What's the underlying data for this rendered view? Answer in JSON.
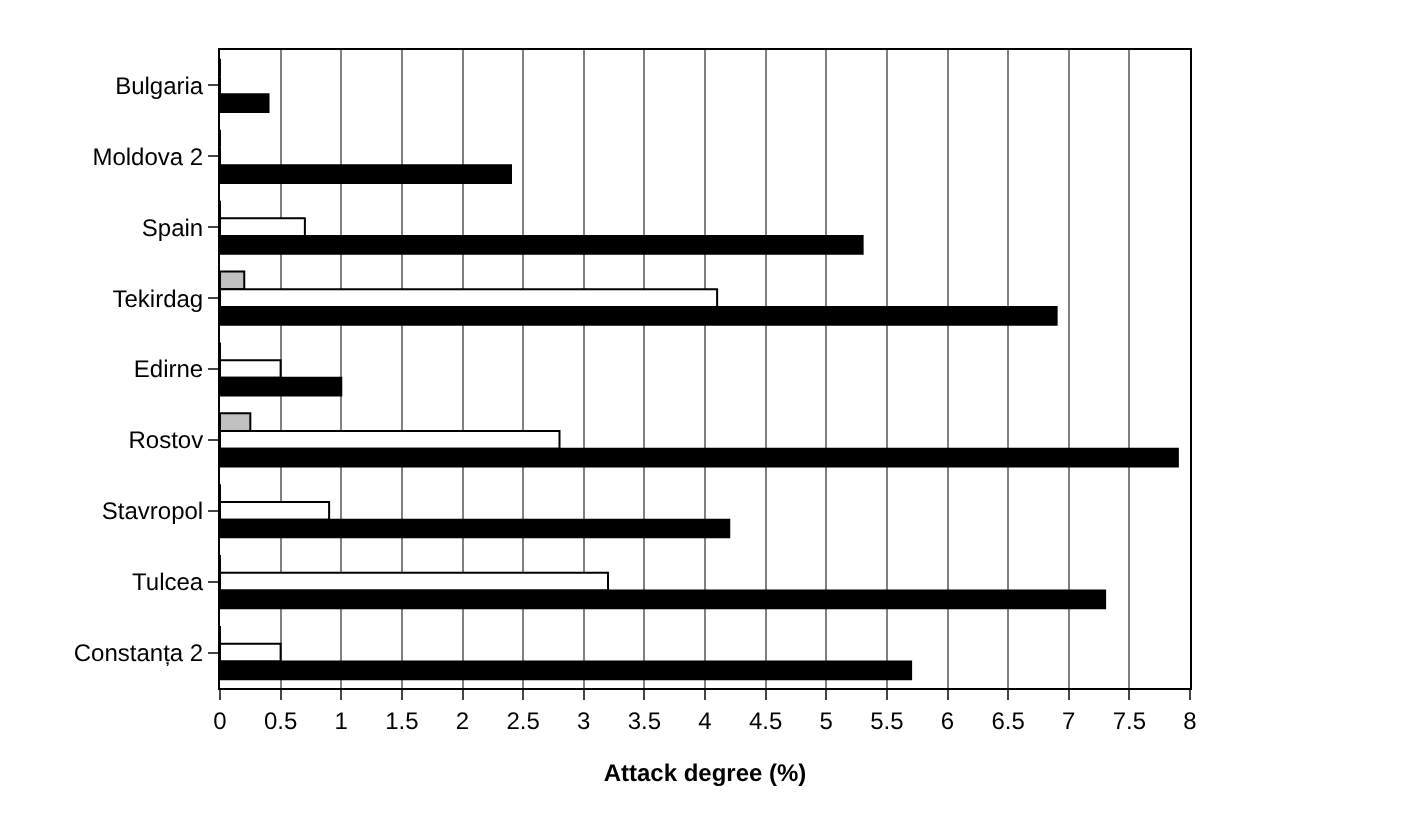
{
  "chart_data": {
    "type": "bar",
    "orientation": "horizontal",
    "xlabel": "Attack degree (%)",
    "categories": [
      "Bulgaria",
      "Moldova 2",
      "Spain",
      "Tekirdag",
      "Edirne",
      "Rostov",
      "Stavropol",
      "Tulcea",
      "Constanța 2"
    ],
    "series": [
      {
        "color": "#c0c0c0",
        "values": [
          0,
          0,
          0,
          0.2,
          0,
          0.25,
          0,
          0,
          0
        ]
      },
      {
        "color": "#ffffff",
        "values": [
          0,
          0,
          0.7,
          4.1,
          0.5,
          2.8,
          0.9,
          3.2,
          0.5
        ]
      },
      {
        "color": "#000000",
        "values": [
          0.4,
          2.4,
          5.3,
          6.9,
          1.0,
          7.9,
          4.2,
          7.3,
          5.7
        ]
      }
    ],
    "xlim": [
      0,
      8
    ],
    "xticks": [
      0,
      0.5,
      1,
      1.5,
      2,
      2.5,
      3,
      3.5,
      4,
      4.5,
      5,
      5.5,
      6,
      6.5,
      7,
      7.5,
      8
    ],
    "grid": "x"
  }
}
